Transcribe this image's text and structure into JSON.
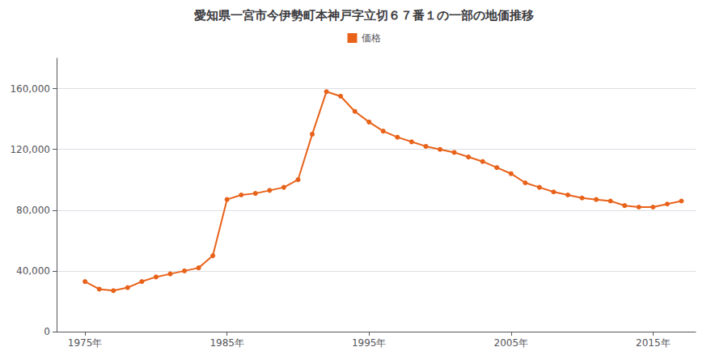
{
  "chart_data": {
    "type": "line",
    "title": "愛知県一宮市今伊勢町本神戸字立切６７番１の一部の地価推移",
    "x": [
      1975,
      1976,
      1977,
      1978,
      1979,
      1980,
      1981,
      1982,
      1983,
      1984,
      1985,
      1986,
      1987,
      1988,
      1989,
      1990,
      1991,
      1992,
      1993,
      1994,
      1995,
      1996,
      1997,
      1998,
      1999,
      2000,
      2001,
      2002,
      2003,
      2004,
      2005,
      2006,
      2007,
      2008,
      2009,
      2010,
      2011,
      2012,
      2013,
      2014,
      2015,
      2016,
      2017
    ],
    "series": [
      {
        "name": "価格",
        "color": "#e8621a",
        "marker": "circle",
        "values": [
          33000,
          28000,
          27000,
          29000,
          33000,
          36000,
          38000,
          40000,
          42000,
          50000,
          87000,
          90000,
          91000,
          93000,
          95000,
          100000,
          130000,
          158000,
          155000,
          145000,
          138000,
          132000,
          128000,
          125000,
          122000,
          120000,
          118000,
          115000,
          112000,
          108000,
          104000,
          98000,
          95000,
          92000,
          90000,
          88000,
          87000,
          86000,
          83000,
          82000,
          82000,
          84000,
          86000
        ]
      }
    ],
    "xlim": [
      1973,
      2018
    ],
    "xticks": [
      {
        "value": 1975,
        "label": "1975年"
      },
      {
        "value": 1985,
        "label": "1985年"
      },
      {
        "value": 1995,
        "label": "1995年"
      },
      {
        "value": 2005,
        "label": "2005年"
      },
      {
        "value": 2015,
        "label": "2015年"
      }
    ],
    "ylim": [
      0,
      180000
    ],
    "yticks": [
      0,
      {
        "value": 40000,
        "label": "40,000"
      },
      {
        "value": 80000,
        "label": "80,000"
      },
      {
        "value": 120000,
        "label": "120,000"
      },
      {
        "value": 160000,
        "label": "160,000"
      }
    ],
    "grid": "y",
    "legend": "top"
  }
}
